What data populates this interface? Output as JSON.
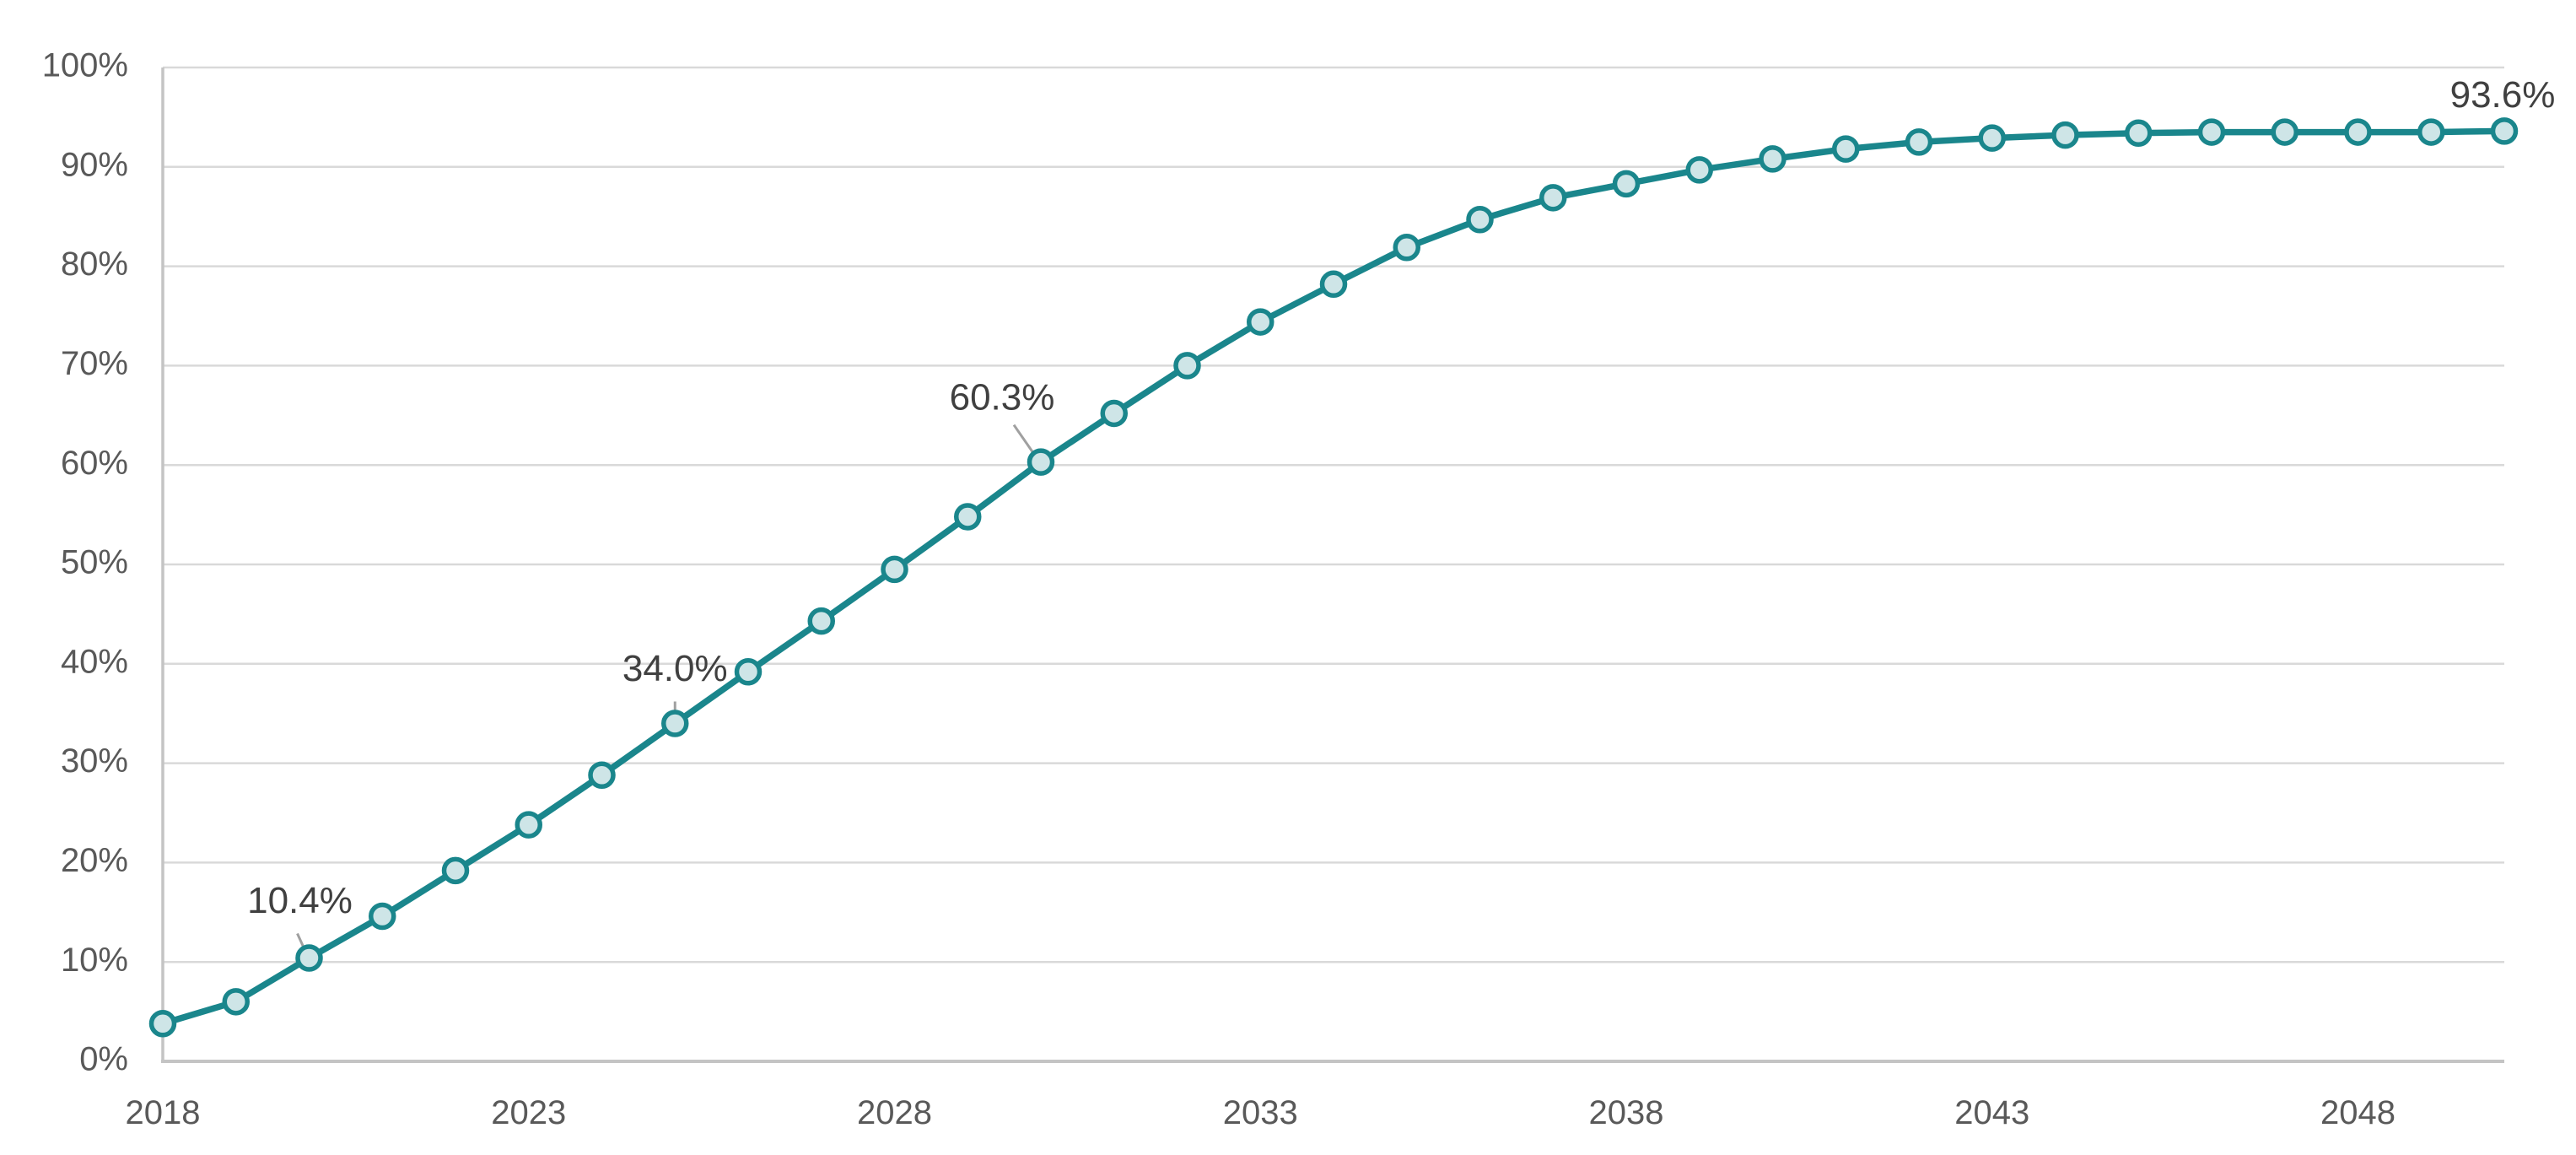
{
  "chart_data": {
    "type": "line",
    "title": "",
    "x": [
      2018,
      2019,
      2020,
      2021,
      2022,
      2023,
      2024,
      2025,
      2026,
      2027,
      2028,
      2029,
      2030,
      2031,
      2032,
      2033,
      2034,
      2035,
      2036,
      2037,
      2038,
      2039,
      2040,
      2041,
      2042,
      2043,
      2044,
      2045,
      2046,
      2047,
      2048,
      2049,
      2050
    ],
    "series": [
      {
        "name": "adoption-share",
        "values": [
          3.8,
          6.0,
          10.4,
          14.6,
          19.2,
          23.8,
          28.8,
          34.0,
          39.2,
          44.3,
          49.5,
          54.8,
          60.3,
          65.2,
          70.0,
          74.4,
          78.2,
          81.9,
          84.7,
          86.9,
          88.3,
          89.7,
          90.8,
          91.8,
          92.5,
          92.9,
          93.2,
          93.4,
          93.5,
          93.5,
          93.5,
          93.5,
          93.6
        ]
      }
    ],
    "annotations": [
      {
        "x": 2020,
        "text": "10.4%"
      },
      {
        "x": 2025,
        "text": "34.0%"
      },
      {
        "x": 2030,
        "text": "60.3%"
      },
      {
        "x": 2050,
        "text": "93.6%"
      }
    ],
    "xlabel": "",
    "ylabel": "",
    "ylim": [
      0,
      100
    ],
    "y_tick_step": 10,
    "y_tick_labels": [
      "0%",
      "10%",
      "20%",
      "30%",
      "40%",
      "50%",
      "60%",
      "70%",
      "80%",
      "90%",
      "100%"
    ],
    "x_tick_labels": [
      "2018",
      "2023",
      "2028",
      "2033",
      "2038",
      "2043",
      "2048"
    ],
    "grid": "horizontal",
    "legend": "none",
    "colors": {
      "line": "#1A868C",
      "marker_fill": "#CEE5E7",
      "marker_stroke": "#1A868C",
      "gridline": "#D9D9D9",
      "axis_line": "#C4C4C4",
      "axis_tick_label": "#595959",
      "data_label": "#404040",
      "leader_line": "#A0A0A0",
      "background": "#FFFFFF"
    }
  }
}
